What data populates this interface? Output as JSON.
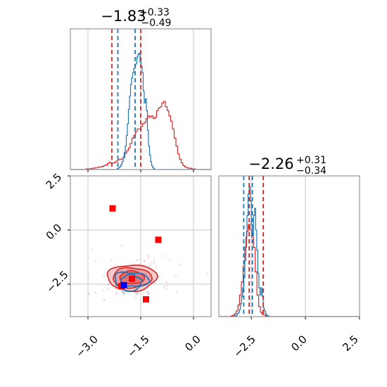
{
  "chart_data": {
    "type": "corner",
    "colors": {
      "red": "#d62728",
      "blue": "#1f77b4",
      "grid": "#c8c8c8",
      "axis": "#808080"
    },
    "param1": {
      "title": {
        "main": "−1.83",
        "sup": "+0.33",
        "sub": "−0.49"
      },
      "range": [
        -3.5,
        0.5
      ],
      "ticks": [
        -3.0,
        -1.5,
        0.0
      ],
      "tick_labels": [
        "−3.0",
        "−1.5",
        "0.0"
      ],
      "red_quantiles": [
        -2.32,
        -1.5
      ],
      "blue_quantiles": [
        -2.15,
        -1.66
      ],
      "red_hist": {
        "x0": -3.5,
        "bin": 0.05,
        "values": [
          0,
          0,
          0,
          0,
          0,
          0,
          0,
          0,
          0,
          1,
          1,
          1,
          2,
          2,
          3,
          3,
          4,
          4,
          5,
          6,
          7,
          9,
          11,
          10,
          10,
          11,
          13,
          15,
          16,
          16,
          19,
          25,
          29,
          33,
          40,
          48,
          52,
          58,
          62,
          62,
          66,
          70,
          72,
          78,
          82,
          80,
          82,
          78,
          80,
          90,
          94,
          96,
          102,
          104,
          96,
          90,
          82,
          74,
          62,
          48,
          36,
          24,
          16,
          10,
          6,
          4,
          3,
          2,
          2,
          1,
          1,
          0,
          0,
          0,
          0,
          0,
          0,
          0,
          0,
          0
        ]
      },
      "blue_hist": {
        "x0": -3.5,
        "bin": 0.03,
        "values": [
          0,
          0,
          0,
          0,
          0,
          0,
          0,
          0,
          0,
          0,
          0,
          0,
          0,
          0,
          0,
          0,
          0,
          0,
          0,
          0,
          0,
          0,
          0,
          0,
          0,
          0,
          0,
          0,
          0,
          0,
          0,
          0,
          0,
          0,
          0,
          0,
          0,
          0,
          0,
          0,
          0,
          0,
          0,
          0,
          1,
          2,
          3,
          5,
          8,
          12,
          18,
          26,
          36,
          52,
          70,
          92,
          112,
          130,
          140,
          148,
          154,
          160,
          162,
          172,
          176,
          178,
          164,
          158,
          148,
          120,
          102,
          108,
          90,
          60,
          36,
          22,
          12,
          6,
          3,
          1,
          0,
          0,
          0,
          0,
          0,
          0,
          0,
          0,
          0,
          0,
          0,
          0,
          0,
          0,
          0,
          0,
          0,
          0,
          0,
          0,
          0,
          0,
          0,
          0,
          0,
          0,
          0,
          0,
          0,
          0,
          0,
          0,
          0,
          0,
          0,
          0,
          0,
          0,
          0,
          0,
          0,
          0,
          0,
          0,
          0,
          0,
          0,
          0,
          0,
          0,
          0,
          0,
          0,
          0
        ]
      },
      "hist_ymax": 215
    },
    "param2": {
      "title": {
        "main": "−2.26",
        "sup": "+0.31",
        "sub": "−0.34"
      },
      "range": [
        -4.0,
        2.5
      ],
      "ticks": [
        -2.5,
        0.0,
        2.5
      ],
      "tick_labels": [
        "−2.5",
        "0.0",
        "2.5"
      ],
      "red_quantiles": [
        -2.6,
        -1.95
      ],
      "blue_quantiles": [
        -2.85,
        -2.45
      ],
      "red_hist": {
        "x0": -4.0,
        "bin": 0.08,
        "values": [
          0,
          0,
          0,
          0,
          0,
          0,
          0,
          1,
          2,
          4,
          8,
          16,
          30,
          48,
          70,
          96,
          118,
          128,
          120,
          110,
          96,
          62,
          30,
          14,
          6,
          3,
          2,
          1,
          0,
          0,
          0,
          0,
          0,
          0,
          0,
          0,
          0,
          0,
          0,
          0,
          0,
          0,
          0,
          0,
          0,
          0,
          0,
          0,
          0,
          0,
          0,
          0,
          0,
          0,
          0,
          0,
          0,
          0,
          0,
          0,
          0,
          0,
          0,
          0,
          0,
          0,
          0,
          0,
          0,
          0,
          0,
          0,
          0,
          0,
          0,
          0,
          0,
          0,
          0,
          0,
          0,
          0
        ]
      },
      "blue_hist": {
        "x0": -4.0,
        "bin": 0.05,
        "values": [
          0,
          0,
          0,
          0,
          0,
          0,
          0,
          0,
          0,
          0,
          0,
          0,
          0,
          0,
          1,
          1,
          2,
          4,
          6,
          10,
          18,
          28,
          40,
          54,
          78,
          110,
          140,
          170,
          180,
          160,
          128,
          112,
          140,
          150,
          120,
          92,
          60,
          40,
          30,
          40,
          28,
          12,
          8,
          4,
          2,
          1,
          0,
          0,
          0,
          0,
          0,
          0,
          0,
          0,
          0,
          0,
          0,
          0,
          0,
          0,
          0,
          0,
          0,
          0,
          0,
          0,
          0,
          0,
          0,
          0,
          0,
          0,
          0,
          0,
          0,
          0,
          0,
          0,
          0,
          0,
          0,
          0,
          0,
          0,
          0,
          0,
          0,
          0,
          0,
          0,
          0,
          0,
          0,
          0,
          0,
          0,
          0,
          0,
          0,
          0,
          0,
          0,
          0,
          0,
          0,
          0,
          0,
          0,
          0,
          0,
          0,
          0,
          0,
          0,
          0,
          0,
          0,
          0,
          0,
          0,
          0,
          0,
          0,
          0,
          0,
          0,
          0,
          0,
          0,
          0
        ]
      },
      "hist_ymax": 195
    },
    "scatter_2d": {
      "red_squares": [
        [
          -2.3,
          1.0
        ],
        [
          -1.0,
          -0.45
        ],
        [
          -1.75,
          -2.25
        ],
        [
          -2.05,
          -2.6
        ],
        [
          -1.35,
          -3.2
        ]
      ],
      "blue_square": [
        -1.98,
        -2.55
      ],
      "red_contour_center": [
        -1.75,
        -2.2
      ],
      "red_contour_radii": [
        [
          0.7,
          0.6
        ],
        [
          0.55,
          0.46
        ],
        [
          0.35,
          0.3
        ]
      ],
      "blue_contour_center": [
        -1.78,
        -2.35
      ],
      "blue_contour_radii": [
        [
          0.48,
          0.42
        ],
        [
          0.3,
          0.27
        ]
      ],
      "red_sample_count": 160,
      "blue_sample_count": 110,
      "red_sample_sd": [
        0.55,
        0.45
      ],
      "blue_sample_sd": [
        0.28,
        0.25
      ]
    }
  }
}
